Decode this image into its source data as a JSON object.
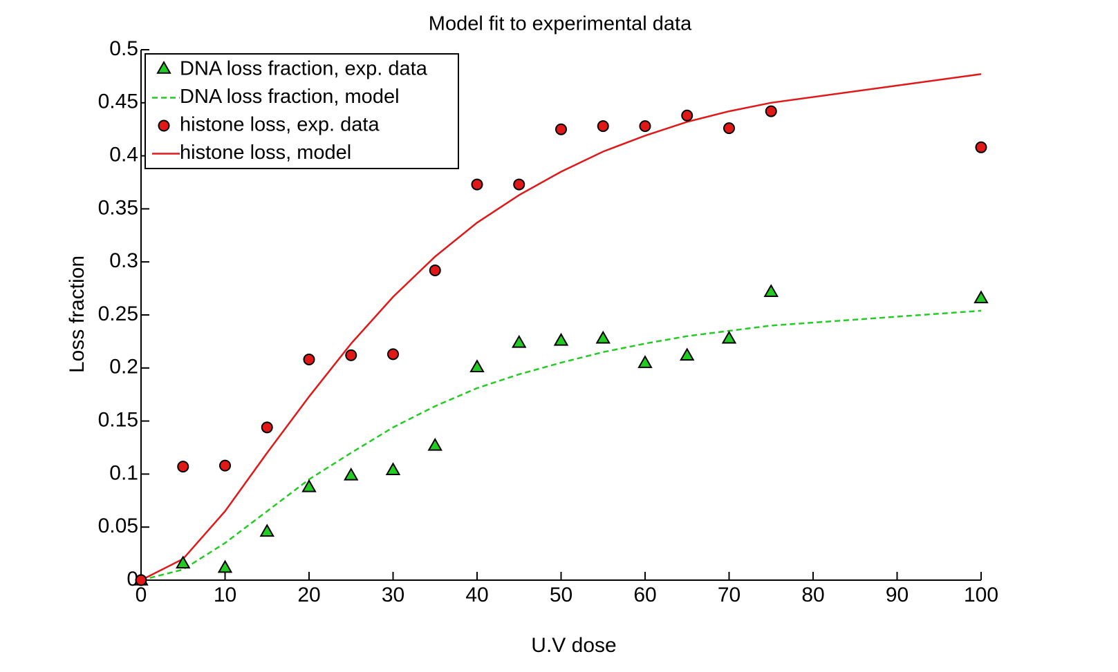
{
  "chart_data": {
    "type": "scatter",
    "title": "Model fit to experimental data",
    "xlabel": "U.V dose",
    "ylabel": "Loss fraction",
    "xlim": [
      0,
      100
    ],
    "ylim": [
      0,
      0.5
    ],
    "xticks": [
      0,
      10,
      20,
      30,
      40,
      50,
      60,
      70,
      80,
      90,
      100
    ],
    "xtick_labels": [
      "0",
      "10",
      "20",
      "30",
      "40",
      "50",
      "60",
      "70",
      "80",
      "90",
      "100"
    ],
    "yticks": [
      0,
      0.05,
      0.1,
      0.15,
      0.2,
      0.25,
      0.3,
      0.35,
      0.4,
      0.45,
      0.5
    ],
    "ytick_labels": [
      "0",
      "0.05",
      "0.1",
      "0.15",
      "0.2",
      "0.25",
      "0.3",
      "0.35",
      "0.4",
      "0.45",
      "0.5"
    ],
    "grid": false,
    "legend_position": "top-left",
    "series": [
      {
        "name": "DNA loss fraction, exp. data",
        "kind": "scatter",
        "marker": "triangle",
        "color": "#22cc22",
        "x": [
          0,
          5,
          10,
          15,
          20,
          25,
          30,
          35,
          40,
          45,
          50,
          55,
          60,
          65,
          70,
          75,
          100
        ],
        "y": [
          0.0,
          0.016,
          0.012,
          0.046,
          0.088,
          0.099,
          0.104,
          0.127,
          0.201,
          0.224,
          0.226,
          0.228,
          0.205,
          0.212,
          0.228,
          0.272,
          0.266
        ]
      },
      {
        "name": "DNA loss fraction, model",
        "kind": "line",
        "style": "dashed",
        "color": "#22cc22",
        "x": [
          0,
          5,
          10,
          15,
          20,
          25,
          30,
          35,
          40,
          45,
          50,
          55,
          60,
          65,
          70,
          75,
          100
        ],
        "y": [
          0.0,
          0.01,
          0.035,
          0.065,
          0.095,
          0.12,
          0.144,
          0.164,
          0.181,
          0.194,
          0.205,
          0.215,
          0.223,
          0.23,
          0.235,
          0.24,
          0.254
        ]
      },
      {
        "name": "histone loss, exp. data",
        "kind": "scatter",
        "marker": "circle",
        "color": "#e01818",
        "x": [
          0,
          5,
          10,
          15,
          20,
          25,
          30,
          35,
          40,
          45,
          50,
          55,
          60,
          65,
          70,
          75,
          100
        ],
        "y": [
          0.0,
          0.107,
          0.108,
          0.144,
          0.208,
          0.212,
          0.213,
          0.292,
          0.373,
          0.373,
          0.425,
          0.428,
          0.428,
          0.438,
          0.426,
          0.442,
          0.408
        ]
      },
      {
        "name": "histone loss, model",
        "kind": "line",
        "style": "solid",
        "color": "#e01818",
        "x": [
          0,
          5,
          10,
          15,
          20,
          25,
          30,
          35,
          40,
          45,
          50,
          55,
          60,
          65,
          70,
          75,
          100
        ],
        "y": [
          0.0,
          0.02,
          0.065,
          0.12,
          0.173,
          0.223,
          0.267,
          0.305,
          0.337,
          0.363,
          0.385,
          0.404,
          0.419,
          0.432,
          0.442,
          0.45,
          0.477
        ]
      }
    ]
  }
}
